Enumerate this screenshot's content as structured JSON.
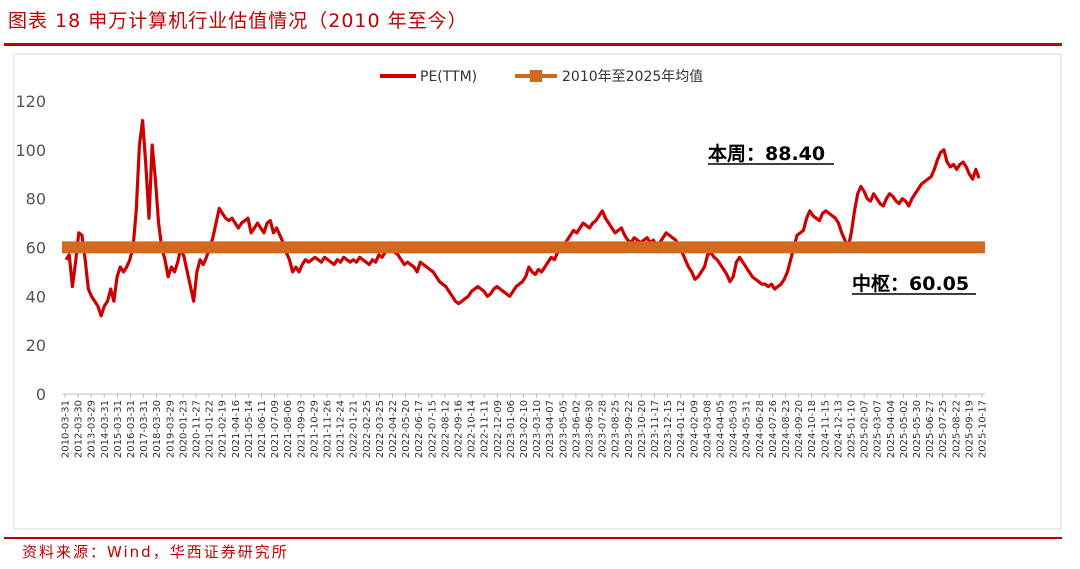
{
  "title": "图表 18 申万计算机行业估值情况（2010 年至今）",
  "source": "资料来源：Wind，华西证券研究所",
  "colors": {
    "pe_line": "#cc0000",
    "mean_line": "#d2691e",
    "rule": "#c00000"
  },
  "chart_data": {
    "type": "line",
    "title": "",
    "xlabel": "",
    "ylabel": "",
    "ylim": [
      0,
      120
    ],
    "yticks": [
      0,
      20,
      40,
      60,
      80,
      100,
      120
    ],
    "grid": false,
    "legend_position": "top",
    "x_tick_labels": [
      "2010-03-31",
      "2012-03-30",
      "2013-03-29",
      "2014-03-31",
      "2015-03-31",
      "2016-03-31",
      "2017-03-31",
      "2018-03-30",
      "2019-03-29",
      "2020-01-23",
      "2020-11-27",
      "2021-01-22",
      "2021-02-19",
      "2021-04-16",
      "2021-05-14",
      "2021-06-11",
      "2021-07-09",
      "2021-08-06",
      "2021-09-03",
      "2021-10-29",
      "2021-11-26",
      "2021-12-24",
      "2022-01-21",
      "2022-02-25",
      "2022-03-25",
      "2022-04-22",
      "2022-05-20",
      "2022-06-17",
      "2022-07-15",
      "2022-08-12",
      "2022-09-16",
      "2022-10-14",
      "2022-11-11",
      "2022-12-09",
      "2023-01-06",
      "2023-02-10",
      "2023-03-10",
      "2023-04-07",
      "2023-05-05",
      "2023-06-02",
      "2023-06-30",
      "2023-07-28",
      "2023-08-25",
      "2023-09-22",
      "2023-10-20",
      "2023-11-17",
      "2023-12-15",
      "2024-01-12",
      "2024-02-09",
      "2024-03-08",
      "2024-04-05",
      "2024-05-03",
      "2024-05-31",
      "2024-06-28",
      "2024-07-26",
      "2024-08-23",
      "2024-09-20",
      "2024-10-18",
      "2024-11-15",
      "2024-12-13",
      "2025-01-10",
      "2025-02-07",
      "2025-03-07",
      "2025-04-04",
      "2025-05-02",
      "2025-05-30",
      "2025-06-27",
      "2025-07-25",
      "2025-08-22",
      "2025-09-19",
      "2025-10-17"
    ],
    "series": [
      {
        "name": "PE(TTM)",
        "values": [
          55,
          57,
          44,
          54,
          66,
          65,
          55,
          43,
          40,
          38,
          36,
          32,
          36,
          38,
          43,
          38,
          48,
          52,
          50,
          52,
          55,
          60,
          75,
          102,
          112,
          94,
          72,
          102,
          88,
          70,
          60,
          55,
          48,
          52,
          50,
          54,
          60,
          56,
          50,
          44,
          38,
          50,
          55,
          53,
          56,
          60,
          64,
          70,
          76,
          74,
          72,
          71,
          72,
          70,
          68,
          70,
          71,
          72,
          66,
          68,
          70,
          68,
          66,
          70,
          71,
          66,
          68,
          65,
          62,
          58,
          55,
          50,
          52,
          50,
          53,
          55,
          54,
          55,
          56,
          55,
          54,
          56,
          55,
          54,
          53,
          55,
          54,
          56,
          55,
          54,
          55,
          54,
          56,
          55,
          54,
          53,
          55,
          54,
          57,
          56,
          58,
          59,
          60,
          58,
          57,
          55,
          53,
          54,
          53,
          52,
          50,
          54,
          53,
          52,
          51,
          50,
          48,
          46,
          45,
          44,
          42,
          40,
          38,
          37,
          38,
          39,
          40,
          42,
          43,
          44,
          43,
          42,
          40,
          41,
          43,
          44,
          43,
          42,
          41,
          40,
          42,
          44,
          45,
          46,
          48,
          52,
          50,
          49,
          51,
          50,
          52,
          54,
          56,
          55,
          58,
          60,
          61,
          63,
          65,
          67,
          66,
          68,
          70,
          69,
          68,
          70,
          71,
          73,
          75,
          72,
          70,
          68,
          66,
          67,
          68,
          65,
          63,
          62,
          64,
          63,
          62,
          63,
          64,
          62,
          63,
          61,
          62,
          64,
          66,
          65,
          64,
          63,
          60,
          58,
          55,
          52,
          50,
          47,
          48,
          50,
          52,
          57,
          58,
          56,
          55,
          53,
          51,
          49,
          46,
          48,
          54,
          56,
          54,
          52,
          50,
          48,
          47,
          46,
          45,
          45,
          44,
          45,
          43,
          44,
          45,
          47,
          50,
          55,
          60,
          65,
          66,
          67,
          72,
          75,
          73,
          72,
          71,
          74,
          75,
          74,
          73,
          72,
          70,
          66,
          63,
          60,
          66,
          75,
          82,
          85,
          83,
          80,
          79,
          82,
          80,
          78,
          77,
          80,
          82,
          81,
          79,
          78,
          80,
          79,
          77,
          80,
          82,
          84,
          86,
          87,
          88,
          89,
          92,
          96,
          99,
          100,
          95,
          93,
          94,
          92,
          94,
          95,
          93,
          90,
          88,
          92,
          88.4
        ]
      },
      {
        "name": "2010年至2025年均值",
        "values": [
          60.05,
          60.05
        ]
      }
    ],
    "annotations": [
      {
        "text": "本周：88.40",
        "value": 88.4
      },
      {
        "text": "中枢：60.05",
        "value": 60.05
      }
    ]
  }
}
